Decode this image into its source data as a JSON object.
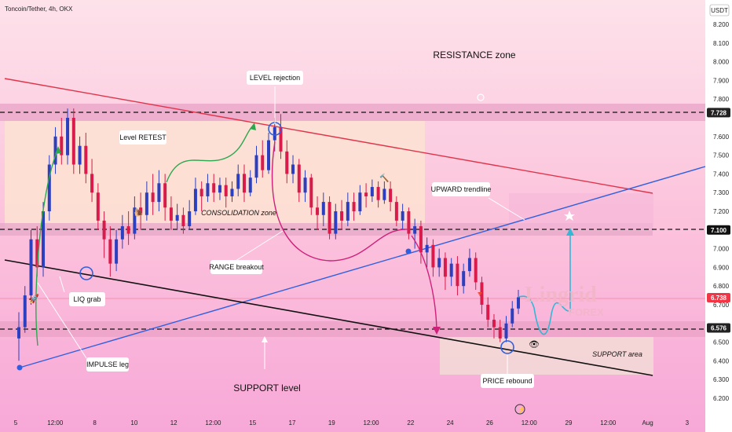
{
  "chart_data": {
    "type": "candlestick",
    "title": "Toncoin/Tether, 4h, OKX",
    "currency": "USDT",
    "y_ticks": [
      "8.200",
      "8.100",
      "8.000",
      "7.900",
      "7.800",
      "7.600",
      "7.500",
      "7.400",
      "7.300",
      "7.200",
      "7.000",
      "6.900",
      "6.800",
      "6.700",
      "6.500",
      "6.400",
      "6.300",
      "6.200"
    ],
    "x_ticks": [
      "5",
      "12:00",
      "8",
      "10",
      "12",
      "12:00",
      "15",
      "17",
      "19",
      "12:00",
      "22",
      "24",
      "26",
      "12:00",
      "29",
      "12:00",
      "Aug",
      "3"
    ],
    "price_badges": [
      {
        "value": "7.728",
        "color": "#222222",
        "text_color": "#ffffff"
      },
      {
        "value": "7.100",
        "color": "#111111",
        "text_color": "#ffffff"
      },
      {
        "value": "6.738",
        "color": "#f23645",
        "text_color": "#ffffff"
      },
      {
        "value": "6.576",
        "color": "#222222",
        "text_color": "#ffffff"
      }
    ],
    "levels": [
      7.728,
      7.1,
      6.576
    ],
    "candles": [
      [
        6.52,
        6.58,
        6.4,
        6.66
      ],
      [
        6.58,
        6.75,
        6.55,
        6.8
      ],
      [
        6.75,
        7.05,
        6.7,
        7.1
      ],
      [
        7.05,
        6.9,
        6.85,
        7.12
      ],
      [
        6.9,
        7.2,
        6.85,
        7.25
      ],
      [
        7.2,
        7.45,
        7.15,
        7.5
      ],
      [
        7.45,
        7.6,
        7.4,
        7.65
      ],
      [
        7.6,
        7.5,
        7.45,
        7.7
      ],
      [
        7.5,
        7.7,
        7.45,
        7.75
      ],
      [
        7.7,
        7.45,
        7.4,
        7.75
      ],
      [
        7.45,
        7.55,
        7.4,
        7.6
      ],
      [
        7.55,
        7.4,
        7.35,
        7.62
      ],
      [
        7.4,
        7.3,
        7.25,
        7.48
      ],
      [
        7.3,
        7.15,
        7.1,
        7.35
      ],
      [
        7.15,
        7.05,
        6.95,
        7.2
      ],
      [
        7.05,
        6.92,
        6.85,
        7.12
      ],
      [
        6.92,
        7.05,
        6.88,
        7.1
      ],
      [
        7.05,
        7.12,
        7.0,
        7.18
      ],
      [
        7.12,
        7.08,
        7.02,
        7.2
      ],
      [
        7.08,
        7.22,
        7.05,
        7.28
      ],
      [
        7.22,
        7.18,
        7.1,
        7.3
      ],
      [
        7.18,
        7.3,
        7.15,
        7.36
      ],
      [
        7.3,
        7.25,
        7.18,
        7.4
      ],
      [
        7.25,
        7.35,
        7.2,
        7.42
      ],
      [
        7.35,
        7.22,
        7.15,
        7.4
      ],
      [
        7.22,
        7.15,
        7.1,
        7.28
      ],
      [
        7.15,
        7.18,
        7.1,
        7.24
      ],
      [
        7.18,
        7.12,
        7.08,
        7.22
      ],
      [
        7.12,
        7.2,
        7.1,
        7.26
      ],
      [
        7.2,
        7.32,
        7.18,
        7.38
      ],
      [
        7.32,
        7.28,
        7.2,
        7.36
      ],
      [
        7.28,
        7.35,
        7.25,
        7.4
      ],
      [
        7.35,
        7.3,
        7.25,
        7.4
      ],
      [
        7.3,
        7.34,
        7.26,
        7.38
      ],
      [
        7.34,
        7.28,
        7.22,
        7.38
      ],
      [
        7.28,
        7.32,
        7.25,
        7.36
      ],
      [
        7.32,
        7.4,
        7.28,
        7.45
      ],
      [
        7.4,
        7.3,
        7.25,
        7.45
      ],
      [
        7.3,
        7.38,
        7.28,
        7.42
      ],
      [
        7.38,
        7.5,
        7.35,
        7.55
      ],
      [
        7.5,
        7.42,
        7.38,
        7.58
      ],
      [
        7.42,
        7.58,
        7.4,
        7.62
      ],
      [
        7.58,
        7.65,
        7.52,
        7.7
      ],
      [
        7.65,
        7.52,
        7.48,
        7.72
      ],
      [
        7.52,
        7.4,
        7.35,
        7.58
      ],
      [
        7.4,
        7.45,
        7.35,
        7.5
      ],
      [
        7.45,
        7.3,
        7.25,
        7.48
      ],
      [
        7.3,
        7.38,
        7.25,
        7.42
      ],
      [
        7.38,
        7.22,
        7.18,
        7.4
      ],
      [
        7.22,
        7.18,
        7.1,
        7.28
      ],
      [
        7.18,
        7.25,
        7.12,
        7.3
      ],
      [
        7.25,
        7.08,
        7.05,
        7.28
      ],
      [
        7.08,
        7.2,
        7.05,
        7.24
      ],
      [
        7.2,
        7.15,
        7.1,
        7.26
      ],
      [
        7.15,
        7.25,
        7.12,
        7.3
      ],
      [
        7.25,
        7.2,
        7.15,
        7.3
      ],
      [
        7.2,
        7.3,
        7.18,
        7.34
      ],
      [
        7.3,
        7.28,
        7.22,
        7.35
      ],
      [
        7.28,
        7.33,
        7.25,
        7.37
      ],
      [
        7.33,
        7.26,
        7.22,
        7.36
      ],
      [
        7.26,
        7.32,
        7.24,
        7.36
      ],
      [
        7.32,
        7.25,
        7.2,
        7.36
      ],
      [
        7.25,
        7.15,
        7.12,
        7.28
      ],
      [
        7.15,
        7.2,
        7.1,
        7.24
      ],
      [
        7.2,
        7.08,
        7.05,
        7.22
      ],
      [
        7.08,
        7.12,
        7.0,
        7.16
      ],
      [
        7.12,
        6.98,
        6.92,
        7.15
      ],
      [
        6.98,
        7.02,
        6.9,
        7.06
      ],
      [
        7.02,
        6.9,
        6.85,
        7.05
      ],
      [
        6.9,
        6.95,
        6.85,
        7.0
      ],
      [
        6.95,
        6.85,
        6.78,
        6.98
      ],
      [
        6.85,
        6.92,
        6.8,
        6.95
      ],
      [
        6.92,
        6.8,
        6.75,
        6.96
      ],
      [
        6.8,
        6.88,
        6.76,
        6.92
      ],
      [
        6.88,
        6.95,
        6.85,
        7.0
      ],
      [
        6.95,
        6.82,
        6.78,
        6.98
      ],
      [
        6.82,
        6.7,
        6.65,
        6.85
      ],
      [
        6.7,
        6.62,
        6.58,
        6.74
      ],
      [
        6.62,
        6.58,
        6.52,
        6.65
      ],
      [
        6.58,
        6.52,
        6.5,
        6.62
      ],
      [
        6.52,
        6.6,
        6.5,
        6.64
      ],
      [
        6.6,
        6.68,
        6.58,
        6.72
      ],
      [
        6.68,
        6.74,
        6.65,
        6.78
      ]
    ]
  },
  "annotations": {
    "resistance": "RESISTANCE zone",
    "level_rejection": "LEVEL rejection",
    "level_retest": "Level RETEST",
    "consolidation": "CONSOLIDATION zone",
    "upward_trendline": "UPWARD trendline",
    "range_breakout": "RANGE breakout",
    "liq_grab": "LIQ grab",
    "impulse_leg": "IMPULSE leg",
    "support_level": "SUPPORT level",
    "price_rebound": "PRICE rebound",
    "support_area": "SUPPORT area"
  },
  "watermark": {
    "line1": "Lingrid",
    "line2": "FOREX"
  },
  "colors": {
    "bull": "#2b3fbf",
    "bear": "#d81b4a",
    "resistance_line": "#e0344a",
    "upward_line": "#2f5fe0",
    "support_line": "#111111",
    "curve_green": "#2ea84f",
    "curve_magenta": "#d0207a",
    "curve_cyan": "#34b7d4"
  }
}
